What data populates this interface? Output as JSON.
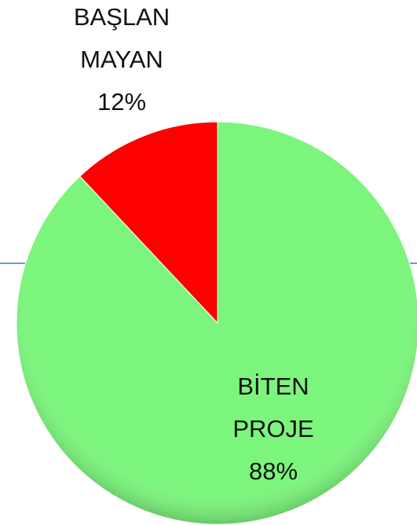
{
  "chart_data": {
    "type": "pie",
    "categories": [
      "BAŞLAN MAYAN",
      "BİTEN PROJE"
    ],
    "values": [
      12,
      88
    ],
    "value_labels": [
      "12%",
      "88%"
    ],
    "colors": [
      "#ff0000",
      "#7cf57c"
    ]
  }
}
